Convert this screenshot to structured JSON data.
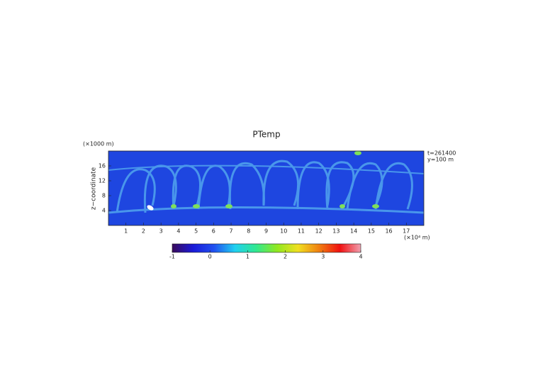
{
  "chart_data": {
    "type": "heatmap",
    "title": "PTemp",
    "y_label": "z−coordinate",
    "y_unit": "(×1000 m)",
    "x_unit": "(×10⁴ m)",
    "annotations": [
      "t=261400",
      "y=100 m"
    ],
    "xlim": [
      0,
      18
    ],
    "xticks": [
      1,
      2,
      3,
      4,
      5,
      6,
      7,
      8,
      9,
      10,
      11,
      12,
      13,
      14,
      15,
      16,
      17
    ],
    "ylim": [
      0,
      20
    ],
    "yticks": [
      4,
      8,
      12,
      16
    ],
    "colorbar": {
      "range": [
        -1,
        4
      ],
      "ticks": [
        -1,
        0,
        1,
        2,
        3,
        4
      ],
      "colors": [
        "#3a0a5a",
        "#1a1ad8",
        "#2050f0",
        "#20d0f0",
        "#30e890",
        "#90e820",
        "#f0e020",
        "#f08010",
        "#f01010",
        "#f0a0b0"
      ]
    }
  }
}
